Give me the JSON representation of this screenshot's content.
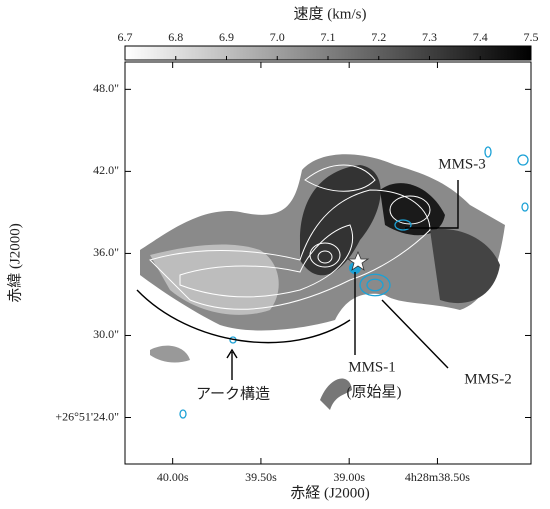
{
  "chart_data": {
    "type": "image",
    "title": "速度 (km/s)",
    "xlabel": "赤経 (J2000)",
    "ylabel": "赤緯 (J2000)",
    "xlim": [
      40.27,
      37.97
    ],
    "xticks": [
      {
        "value": 40.0,
        "label": "40.00s"
      },
      {
        "value": 39.5,
        "label": "39.50s"
      },
      {
        "value": 39.0,
        "label": "39.00s"
      },
      {
        "value": 38.5,
        "label": "4h28m38.50s"
      }
    ],
    "ylim": [
      20.6,
      50.0
    ],
    "yticks": [
      {
        "value": 48,
        "label": "48.0\""
      },
      {
        "value": 42,
        "label": "42.0\""
      },
      {
        "value": 36,
        "label": "36.0\""
      },
      {
        "value": 30,
        "label": "30.0\""
      },
      {
        "value": 24,
        "label": "+26°51'24.0\""
      }
    ],
    "colorbar": {
      "lim": [
        6.7,
        7.5
      ],
      "ticks": [
        6.7,
        6.8,
        6.9,
        {
          "value": 7.0,
          "label": "7.0"
        },
        7.1,
        7.2,
        7.3,
        7.4,
        7.5
      ],
      "colors": [
        "#ffffff",
        "#000000"
      ]
    },
    "annotations": [
      "MMS-3",
      "MMS-1",
      "(原始星)",
      "MMS-2",
      "アーク構造"
    ]
  }
}
